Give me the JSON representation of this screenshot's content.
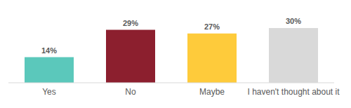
{
  "chart_data": {
    "type": "bar",
    "categories": [
      "Yes",
      "No",
      "Maybe",
      "I haven't thought about it"
    ],
    "values": [
      14,
      29,
      27,
      30
    ],
    "value_labels": [
      "14%",
      "29%",
      "27%",
      "30%"
    ],
    "colors": [
      "#5bc8bb",
      "#8c1f2e",
      "#fecb3b",
      "#d9d9d9"
    ],
    "data_labels": true,
    "tick_labels": "x",
    "grid": false
  }
}
